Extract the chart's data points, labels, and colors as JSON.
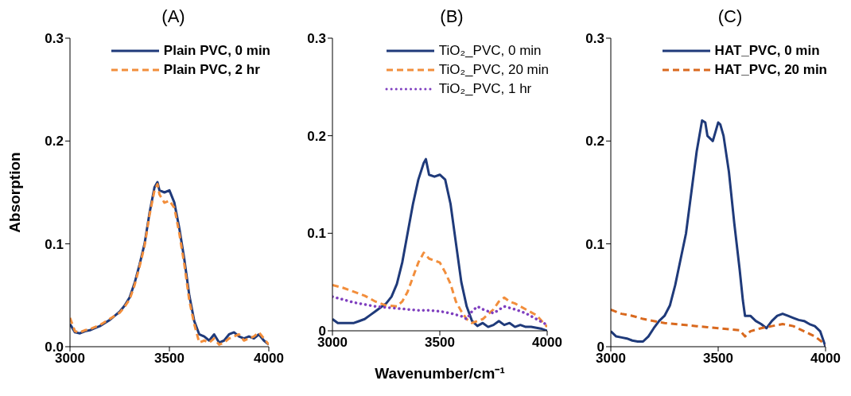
{
  "chart_data": [
    {
      "type": "line",
      "title": "(A)",
      "ylabel": "Absorption",
      "legend": "top right",
      "xlim": [
        3000,
        4000
      ],
      "xticks": [
        3000,
        3500,
        4000
      ],
      "ylim": [
        0,
        0.3
      ],
      "yticks": [
        {
          "value": 0,
          "label": "0.0"
        },
        0.1,
        0.2,
        0.3
      ],
      "series": [
        {
          "name": "Plain PVC, 0 min",
          "color": "#1f3a7a",
          "line_style": "solid",
          "x": [
            3000,
            3025,
            3050,
            3075,
            3100,
            3125,
            3150,
            3175,
            3200,
            3225,
            3250,
            3275,
            3300,
            3325,
            3350,
            3375,
            3400,
            3425,
            3440,
            3450,
            3475,
            3500,
            3525,
            3550,
            3575,
            3600,
            3625,
            3650,
            3675,
            3700,
            3725,
            3750,
            3775,
            3800,
            3825,
            3850,
            3875,
            3900,
            3925,
            3950,
            3975,
            4000
          ],
          "values": [
            0.022,
            0.014,
            0.013,
            0.015,
            0.016,
            0.018,
            0.02,
            0.023,
            0.026,
            0.03,
            0.034,
            0.04,
            0.048,
            0.062,
            0.08,
            0.1,
            0.13,
            0.155,
            0.16,
            0.152,
            0.15,
            0.152,
            0.14,
            0.115,
            0.085,
            0.05,
            0.025,
            0.012,
            0.01,
            0.006,
            0.012,
            0.004,
            0.006,
            0.012,
            0.014,
            0.01,
            0.008,
            0.01,
            0.008,
            0.012,
            0.006,
            0.002
          ]
        },
        {
          "name": "Plain PVC, 2 hr",
          "color": "#f28e3c",
          "line_style": "dashed",
          "x": [
            3000,
            3025,
            3050,
            3075,
            3100,
            3125,
            3150,
            3175,
            3200,
            3225,
            3250,
            3275,
            3300,
            3325,
            3350,
            3375,
            3400,
            3425,
            3440,
            3450,
            3475,
            3500,
            3525,
            3550,
            3575,
            3600,
            3625,
            3650,
            3675,
            3700,
            3725,
            3750,
            3775,
            3800,
            3825,
            3850,
            3875,
            3900,
            3925,
            3950,
            3975,
            4000
          ],
          "values": [
            0.028,
            0.015,
            0.014,
            0.016,
            0.017,
            0.019,
            0.021,
            0.024,
            0.027,
            0.03,
            0.033,
            0.039,
            0.046,
            0.06,
            0.078,
            0.098,
            0.128,
            0.152,
            0.158,
            0.148,
            0.14,
            0.142,
            0.135,
            0.11,
            0.08,
            0.045,
            0.022,
            0.004,
            0.006,
            0.004,
            0.008,
            0.002,
            0.004,
            0.008,
            0.01,
            0.012,
            0.006,
            0.008,
            0.01,
            0.014,
            0.008,
            0.002
          ]
        }
      ]
    },
    {
      "type": "line",
      "title": "(B)",
      "xlabel": "Wavenumber/cm⁻¹",
      "legend": "top right",
      "xlim": [
        3000,
        4000
      ],
      "xticks": [
        3000,
        3500,
        4000
      ],
      "ylim": [
        0,
        0.3
      ],
      "yticks": [
        0,
        0.1,
        0.2,
        0.3
      ],
      "series": [
        {
          "name": "TiO₂_PVC, 0 min",
          "color": "#1f3a7a",
          "line_style": "solid",
          "x": [
            3000,
            3025,
            3050,
            3075,
            3100,
            3125,
            3150,
            3175,
            3200,
            3225,
            3250,
            3275,
            3300,
            3325,
            3350,
            3375,
            3400,
            3425,
            3435,
            3450,
            3475,
            3500,
            3525,
            3550,
            3575,
            3600,
            3625,
            3650,
            3675,
            3700,
            3725,
            3750,
            3775,
            3800,
            3825,
            3850,
            3875,
            3900,
            3925,
            3950,
            3975,
            4000
          ],
          "values": [
            0.012,
            0.008,
            0.008,
            0.008,
            0.008,
            0.01,
            0.012,
            0.016,
            0.02,
            0.024,
            0.028,
            0.035,
            0.048,
            0.07,
            0.1,
            0.13,
            0.155,
            0.172,
            0.176,
            0.16,
            0.158,
            0.16,
            0.155,
            0.13,
            0.09,
            0.05,
            0.025,
            0.01,
            0.005,
            0.008,
            0.004,
            0.006,
            0.01,
            0.006,
            0.008,
            0.004,
            0.006,
            0.004,
            0.004,
            0.003,
            0.002,
            0
          ]
        },
        {
          "name": "TiO₂_PVC, 20 min",
          "color": "#f28e3c",
          "line_style": "dashed",
          "x": [
            3000,
            3050,
            3100,
            3150,
            3200,
            3250,
            3300,
            3325,
            3350,
            3375,
            3400,
            3425,
            3450,
            3475,
            3500,
            3525,
            3550,
            3575,
            3600,
            3625,
            3650,
            3700,
            3750,
            3775,
            3800,
            3825,
            3850,
            3900,
            3950,
            4000
          ],
          "values": [
            0.047,
            0.044,
            0.04,
            0.036,
            0.03,
            0.026,
            0.025,
            0.03,
            0.04,
            0.055,
            0.07,
            0.08,
            0.074,
            0.072,
            0.07,
            0.06,
            0.048,
            0.03,
            0.02,
            0.012,
            0.008,
            0.012,
            0.022,
            0.03,
            0.034,
            0.03,
            0.028,
            0.022,
            0.016,
            0.004
          ]
        },
        {
          "name": "TiO₂_PVC, 1 hr",
          "color": "#7f3fbf",
          "line_style": "dotted",
          "x": [
            3000,
            3050,
            3100,
            3150,
            3200,
            3250,
            3300,
            3350,
            3400,
            3450,
            3500,
            3550,
            3600,
            3625,
            3650,
            3675,
            3700,
            3750,
            3800,
            3850,
            3900,
            3950,
            4000
          ],
          "values": [
            0.035,
            0.032,
            0.029,
            0.027,
            0.025,
            0.024,
            0.023,
            0.022,
            0.021,
            0.021,
            0.02,
            0.018,
            0.015,
            0.012,
            0.02,
            0.025,
            0.022,
            0.018,
            0.025,
            0.022,
            0.018,
            0.012,
            0.006
          ]
        }
      ]
    },
    {
      "type": "line",
      "title": "(C)",
      "legend": "top right",
      "xlim": [
        3000,
        4000
      ],
      "xticks": [
        3000,
        3500,
        4000
      ],
      "ylim": [
        0,
        0.3
      ],
      "yticks": [
        0,
        0.1,
        0.2,
        0.3
      ],
      "series": [
        {
          "name": "HAT_PVC, 0 min",
          "color": "#1f3a7a",
          "line_style": "solid",
          "x": [
            3000,
            3025,
            3050,
            3075,
            3100,
            3125,
            3150,
            3175,
            3200,
            3225,
            3250,
            3275,
            3300,
            3325,
            3350,
            3375,
            3400,
            3425,
            3440,
            3450,
            3475,
            3500,
            3510,
            3525,
            3550,
            3575,
            3600,
            3615,
            3625,
            3650,
            3675,
            3700,
            3725,
            3750,
            3775,
            3800,
            3825,
            3850,
            3875,
            3900,
            3925,
            3950,
            3975,
            4000
          ],
          "values": [
            0.015,
            0.01,
            0.009,
            0.008,
            0.006,
            0.005,
            0.005,
            0.01,
            0.018,
            0.025,
            0.03,
            0.04,
            0.06,
            0.085,
            0.11,
            0.15,
            0.19,
            0.22,
            0.218,
            0.205,
            0.2,
            0.218,
            0.216,
            0.205,
            0.17,
            0.12,
            0.075,
            0.045,
            0.03,
            0.03,
            0.025,
            0.022,
            0.018,
            0.025,
            0.03,
            0.032,
            0.03,
            0.028,
            0.026,
            0.025,
            0.022,
            0.02,
            0.015,
            0
          ]
        },
        {
          "name": "HAT_PVC, 20 min",
          "color": "#d9691e",
          "line_style": "dashed",
          "x": [
            3000,
            3050,
            3100,
            3150,
            3200,
            3250,
            3300,
            3350,
            3400,
            3450,
            3500,
            3550,
            3600,
            3625,
            3650,
            3700,
            3750,
            3800,
            3850,
            3900,
            3950,
            4000
          ],
          "values": [
            0.036,
            0.032,
            0.03,
            0.027,
            0.025,
            0.023,
            0.022,
            0.021,
            0.02,
            0.019,
            0.018,
            0.017,
            0.016,
            0.01,
            0.015,
            0.018,
            0.02,
            0.022,
            0.02,
            0.015,
            0.01,
            0.002
          ]
        }
      ]
    }
  ]
}
